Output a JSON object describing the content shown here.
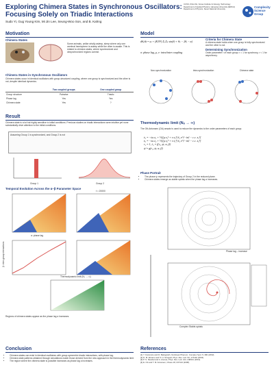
{
  "header": {
    "title_line1": "Exploring Chimera States in Synchronous Oscillators:",
    "title_line2": "Focusing Solely on Triadic Interactions",
    "authors": "Sudo Yi, Gug Young Kim, Mi Jin Lee, Seung-Woo Son, and B. Kahng",
    "affiliations": [
      "CCSS, KIGs KH, Korea Institute for Energy Technology",
      "Department of Applied Physics, Hanyang University (ERICA)",
      "Department of Physics, Seoul National University"
    ],
    "logo": "Complexity Science Group"
  },
  "motivation": {
    "heading": "Motivation",
    "sub1": "Chimera States",
    "text1": "Some animals, unlike wholly asleep, sleep where only one cerebral hemisphere is asleep while the other is awake. This is related to chimera states, where synchronized and desynchronized regions coexist.",
    "sub2": "Chimera States in Synchronous Oscillators",
    "text2": "Chimera states occur in identical oscillators with group-structured coupling, where one group is synchronized and the other is not, despite identical dynamics.",
    "table_header": [
      "",
      "Two coupled groups",
      "One coupled group"
    ],
    "table_rows": [
      [
        "Group structure",
        "Pairwise",
        "Triadic"
      ],
      [
        "Phase lag",
        "Yes",
        "Yes"
      ],
      [
        "Chimera state",
        "Yes",
        "?"
      ]
    ]
  },
  "model": {
    "heading": "Model",
    "criteria_title": "Criteria for Chimera State",
    "criteria_text": "A chimera state holds when one group is fully synchronized and the other is not.",
    "determining_title": "Determining Synchronization",
    "determining_text": "Order parameter r of each group: r = 1 for synchrony, r < 1 for asynchrony.",
    "eq1": "dθᵢ/dt = ω + (K/N²) Σⱼ Σₖ sin(θⱼ + θₖ − 2θᵢ − α)",
    "eq2": "σ: phase lag,  μ, ν: intra/inter coupling",
    "labels": [
      "Non-synchronization",
      "Intra-synchronization",
      "Chimera state"
    ]
  },
  "result": {
    "heading": "Result",
    "intro": "Chimera state is a lot but highly sensitive to initial conditions. Previous studies on triadic interactions were intuitive yet none substantially drive attention to the initial conditions.",
    "box_text": "Assuming Group 1 is synchronized, and Group 2 is not",
    "group1": "Group 1",
    "group2": "Group 2",
    "temporal_heading": "Temporal Evolution Across the α–β Parameter Space",
    "time1": "t = 20000",
    "axis_x": "α: phase lag",
    "axis_y": "β: inter-group interactions",
    "thermo_label": "Thermodynamic limit (Nₒ → ∞)",
    "caption": "Regions of chimera states appear as the phase lag α increases."
  },
  "thermo": {
    "heading": "Thermodynamic limit (Nₒ → ∞)",
    "text": "The Ott-Antonsen (OA) ansatz is used to reduce the dynamics to the order parameters of each group.",
    "eqs": [
      "ż₁ = −iω z₁ + ½[(μ z₁² + ν z₂²) z̄₁ e^{−iα} − c.c. z₁²]",
      "ż₂ = −iω z₂ + ½[(μ z₂² + ν z₁²) z̄₂ e^{−iα} − c.c. z₂²]",
      "r₁ = 1,  ṙ₂ = f(r₂, ψ; α, β)",
      "ψ̇ = g(r₂, ψ; α, β)"
    ],
    "phase_heading": "Phase Portrait",
    "bullets": [
      "The phase ψ represents the trajectory of Group 2 in the reduced plane.",
      "Chimera states emerge as stable spirals when the phase lag α increases."
    ],
    "fig_label1": "Phase lag – increase",
    "fig_label2": "Complex Stable-spirals"
  },
  "conclusion": {
    "heading": "Conclusion",
    "bullets": [
      "Chimera states can exist in identical oscillators with group-symmetric triadic interactions, with phase lag.",
      "Chimera state patterns obtained through simulations match those derived from the new approach in the thermodynamic limit.",
      "The region where the chimera state is possible increases as phase lag α increases."
    ]
  },
  "references": {
    "heading": "References",
    "items": [
      "[1] Y. Kuramoto and D. Battogtokh, Nonlinear Phenom. Complex Syst. 5, 380 (2002).",
      "[2] D. M. Abrams and S. H. Strogatz, Phys. Rev. Lett. 93, 174102 (2004).",
      "[3] P. S. Skardal and A. Arenas, Phys. Rev. Lett. 122, 248301 (2019).",
      "[4] E. Ott and T. M. Antonsen, Chaos 18, 037113 (2008)."
    ]
  }
}
